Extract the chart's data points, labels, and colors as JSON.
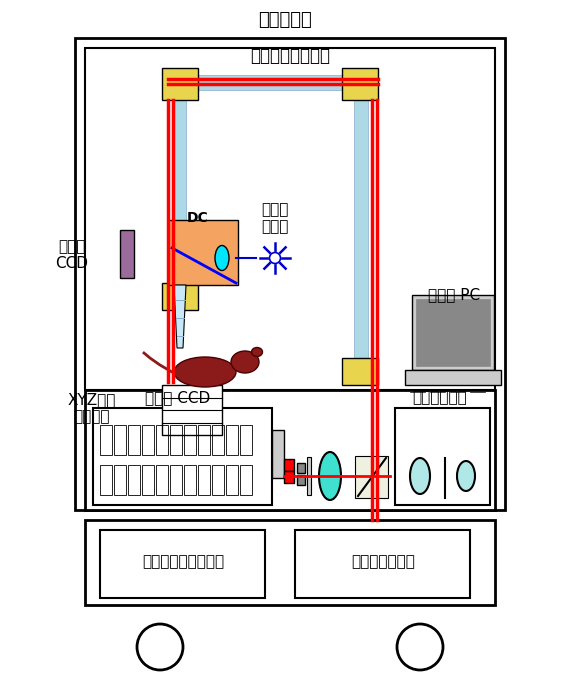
{
  "title": "遮光ケース",
  "bg_color": "#ffffff",
  "labels": {
    "title": "遮光ケース",
    "arm": "多関節導光アーム",
    "dc": "DC",
    "led": "励起用\nＬＥＤ",
    "ccd_obs": "観察用\nCCD",
    "xyz": "XYZ試料\nステージ",
    "pc": "制御用 PC",
    "high_ccd": "高感度 CCD",
    "confocal": "共焦点光学系",
    "ccd_ctrl": "ＣＣＤコントローラ",
    "data_analysis": "データ解析装置"
  },
  "colors": {
    "yellow_joint": "#e8d44d",
    "light_blue": "#add8e6",
    "light_blue2": "#b8d8e8",
    "red": "#ff0000",
    "blue": "#0000cd",
    "orange": "#f4a460",
    "cyan": "#00e5ff",
    "cyan2": "#40e0d0",
    "purple": "#9b6b9b",
    "mouse": "#8b1a1a",
    "gray": "#999999",
    "lgray": "#cccccc",
    "dgray": "#888888",
    "beige": "#f0f0e0",
    "confocal_lens": "#b0e8e8"
  }
}
